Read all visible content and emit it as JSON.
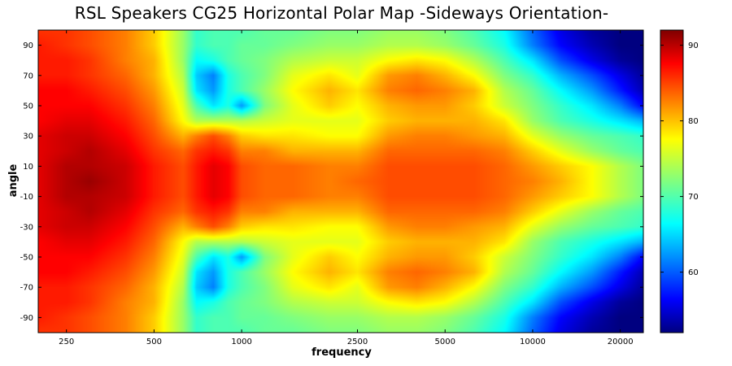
{
  "chart_data": {
    "type": "heatmap",
    "title": "RSL Speakers CG25 Horizontal Polar Map -Sideways Orientation-",
    "xlabel": "frequency",
    "ylabel": "angle",
    "x_scale": "log",
    "xlim": [
      200,
      24000
    ],
    "ylim": [
      -100,
      100
    ],
    "x_ticks": [
      250,
      500,
      1000,
      2500,
      5000,
      10000,
      20000
    ],
    "y_ticks": [
      90,
      70,
      50,
      30,
      10,
      -10,
      -30,
      -50,
      -70,
      -90
    ],
    "colorbar": {
      "min": 52,
      "max": 92,
      "ticks": [
        90,
        80,
        70,
        60
      ],
      "colormap": "jet"
    },
    "angles": [
      0,
      10,
      20,
      30,
      40,
      50,
      60,
      70,
      80,
      90,
      100
    ],
    "frequencies": [
      200,
      250,
      300,
      400,
      500,
      630,
      700,
      800,
      900,
      1000,
      1200,
      1500,
      2000,
      2500,
      3200,
      4000,
      5000,
      6300,
      8000,
      10000,
      12500,
      16000,
      20000,
      24000
    ],
    "levels": [
      [
        88,
        90,
        91,
        89,
        86,
        84,
        86,
        88,
        87,
        84,
        83,
        83,
        82,
        83,
        84,
        84,
        84,
        84,
        83,
        82,
        80,
        77,
        74,
        72
      ],
      [
        88,
        90,
        90,
        89,
        86,
        84,
        86,
        88,
        87,
        84,
        83,
        83,
        82,
        82,
        84,
        84,
        84,
        84,
        83,
        81,
        79,
        77,
        74,
        72
      ],
      [
        88,
        89,
        90,
        88,
        85,
        83,
        85,
        86,
        85,
        82,
        82,
        80,
        80,
        80,
        83,
        83,
        83,
        83,
        82,
        79,
        76,
        73,
        71,
        70
      ],
      [
        88,
        89,
        89,
        87,
        84,
        80,
        82,
        84,
        82,
        79,
        78,
        78,
        77,
        77,
        81,
        82,
        82,
        81,
        80,
        76,
        73,
        71,
        70,
        69
      ],
      [
        87,
        88,
        88,
        86,
        83,
        77,
        74,
        74,
        74,
        74,
        75,
        76,
        76,
        76,
        79,
        80,
        80,
        80,
        78,
        73,
        70,
        68,
        66,
        64
      ],
      [
        87,
        87,
        87,
        85,
        82,
        76,
        70,
        66,
        68,
        63,
        72,
        76,
        79,
        77,
        80,
        81,
        81,
        79,
        75,
        72,
        69,
        66,
        62,
        57
      ],
      [
        87,
        87,
        86,
        84,
        81,
        75,
        66,
        63,
        68,
        70,
        73,
        77,
        80,
        78,
        82,
        83,
        82,
        80,
        74,
        71,
        67,
        63,
        58,
        54
      ],
      [
        86,
        86,
        85,
        83,
        80,
        74,
        65,
        62,
        68,
        70,
        72,
        76,
        78,
        76,
        81,
        82,
        80,
        77,
        72,
        69,
        64,
        60,
        56,
        53
      ],
      [
        86,
        86,
        85,
        82,
        80,
        73,
        67,
        68,
        70,
        71,
        72,
        74,
        75,
        75,
        77,
        78,
        77,
        74,
        70,
        66,
        60,
        56,
        53,
        52
      ],
      [
        86,
        85,
        84,
        82,
        79,
        73,
        69,
        70,
        70,
        71,
        71,
        72,
        73,
        73,
        74,
        74,
        73,
        71,
        68,
        62,
        57,
        54,
        52,
        52
      ],
      [
        85,
        85,
        84,
        82,
        79,
        73,
        69,
        70,
        70,
        70,
        71,
        71,
        72,
        72,
        73,
        73,
        72,
        70,
        67,
        61,
        56,
        53,
        52,
        52
      ]
    ]
  }
}
